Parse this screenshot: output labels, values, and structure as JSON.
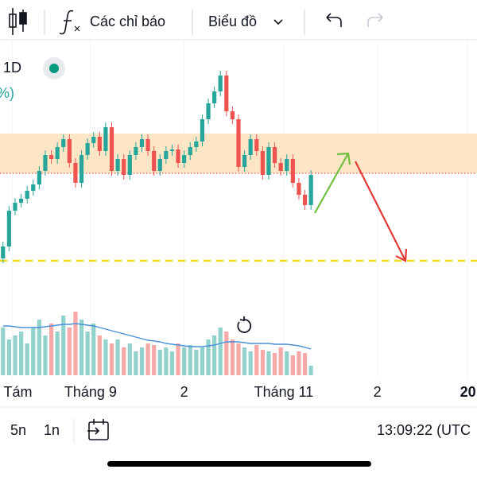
{
  "toolbar": {
    "indicators": "Các chỉ báo",
    "chart_menu": "Biểu đồ"
  },
  "legend": {
    "interval": "1D",
    "change": "%)"
  },
  "bottom_bar": {
    "range_5": "5n",
    "range_1": "1n",
    "clock": "13:09:22 (UTC"
  },
  "chart_data": {
    "type": "candlestick",
    "up_color": "#26a69a",
    "down_color": "#ef5350",
    "open": [
      7.5,
      15,
      37.5,
      42.5,
      45,
      50,
      54,
      62.5,
      72.5,
      70,
      77.5,
      82.5,
      67.5,
      55,
      72.5,
      80,
      84,
      75,
      90,
      62.5,
      70,
      60,
      72.5,
      77.5,
      82.5,
      75,
      62.5,
      70,
      75,
      76,
      67.5,
      72.5,
      77.5,
      81,
      95,
      105,
      112.5,
      122.5,
      100,
      95,
      65,
      72.5,
      82.5,
      75,
      60,
      77.5,
      67.5,
      62.5,
      70,
      55,
      47.5,
      41
    ],
    "high": [
      18,
      40.5,
      45.5,
      48,
      53,
      57,
      65.5,
      75.5,
      75.5,
      80.5,
      85.5,
      85.5,
      70.5,
      75.5,
      83,
      87,
      87,
      93,
      93,
      73,
      73,
      75.5,
      80.5,
      85.5,
      85.5,
      78,
      73,
      78,
      79,
      79,
      75.5,
      80.5,
      84,
      98,
      108,
      115.5,
      125.5,
      125.5,
      103,
      98,
      75.5,
      85.5,
      85.5,
      78,
      80.5,
      80.5,
      70.5,
      73,
      73,
      58,
      50.5,
      63
    ],
    "low": [
      4.5,
      12,
      34.5,
      39.5,
      42,
      47,
      51,
      59.5,
      67,
      67,
      74.5,
      64.5,
      52,
      52,
      69.5,
      77,
      72,
      72,
      59.5,
      59.5,
      57,
      57,
      69.5,
      74.5,
      72,
      59.5,
      59.5,
      67,
      72,
      64.5,
      64.5,
      69.5,
      74.5,
      78,
      92,
      102,
      109.5,
      97,
      92,
      62,
      62,
      69.5,
      72,
      57,
      57,
      64.5,
      59.5,
      59.5,
      52,
      44.5,
      38,
      38
    ],
    "close": [
      15,
      37.5,
      42.5,
      45,
      50,
      54,
      62.5,
      72.5,
      70,
      77.5,
      82.5,
      67.5,
      55,
      72.5,
      80,
      84,
      75,
      90,
      62.5,
      70,
      60,
      72.5,
      77.5,
      82.5,
      75,
      62.5,
      70,
      75,
      76,
      67.5,
      72.5,
      77.5,
      81,
      95,
      105,
      112.5,
      122.5,
      100,
      95,
      65,
      72.5,
      82.5,
      75,
      60,
      77.5,
      67.5,
      62.5,
      70,
      55,
      47.5,
      41,
      60
    ],
    "volume": [
      60,
      45,
      50,
      55,
      40,
      60,
      70,
      50,
      65,
      55,
      75,
      60,
      80,
      70,
      55,
      65,
      50,
      45,
      40,
      45,
      35,
      40,
      30,
      35,
      40,
      38,
      32,
      35,
      30,
      40,
      35,
      38,
      32,
      35,
      45,
      50,
      60,
      55,
      45,
      40,
      35,
      30,
      38,
      32,
      30,
      28,
      35,
      30,
      25,
      30,
      28,
      12
    ],
    "volume_ma": [
      62,
      62,
      61,
      60,
      60,
      60,
      60,
      61,
      62,
      63,
      64,
      64,
      65,
      64,
      63,
      62,
      60,
      58,
      56,
      54,
      52,
      50,
      48,
      46,
      44,
      43,
      42,
      40,
      39,
      38,
      37,
      36,
      36,
      36,
      37,
      38,
      40,
      42,
      42,
      42,
      41,
      40,
      40,
      40,
      40,
      39,
      39,
      39,
      38,
      37,
      35,
      33
    ],
    "ma_color": "#4a90d9",
    "xlim": [
      -0.5,
      78.5
    ],
    "ylim": [
      0,
      140
    ],
    "volume_ylim": [
      0,
      112
    ],
    "xticks": [
      {
        "value": 1.5,
        "label": "g Tám"
      },
      {
        "value": 14.5,
        "label": "Tháng 9"
      },
      {
        "value": 30,
        "label": "2"
      },
      {
        "value": 46.5,
        "label": "Tháng 11"
      },
      {
        "value": 62,
        "label": "2"
      },
      {
        "value": 77,
        "label": "20"
      }
    ],
    "zone": [
      61,
      86
    ],
    "zone_color": "#fde6c6",
    "dotted_level": 61,
    "dashed_level": 6,
    "dashed_color": "#f2d81f",
    "grid": true
  }
}
